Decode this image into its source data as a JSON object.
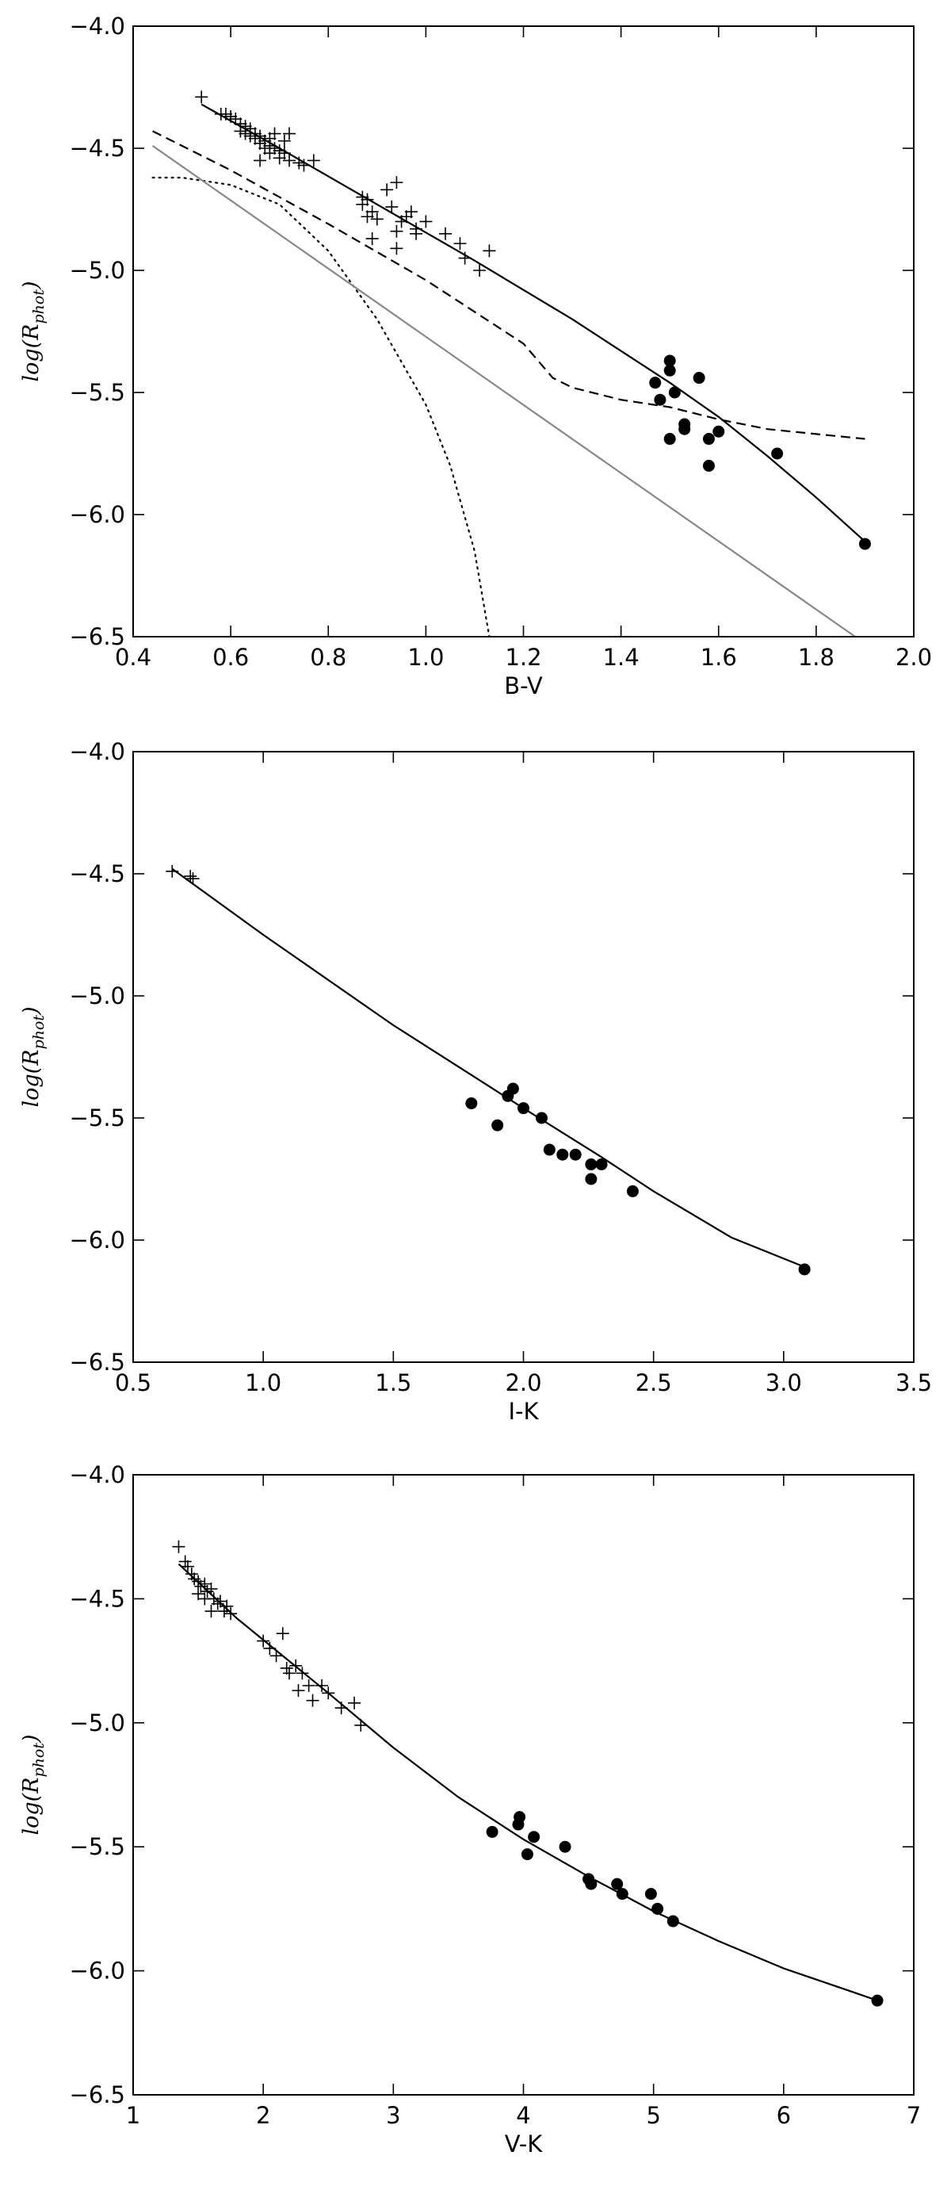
{
  "chart_data": [
    {
      "type": "scatter",
      "title": "",
      "xlabel": "B-V",
      "ylabel": "log(R_phot)",
      "xlim": [
        0.4,
        2.0
      ],
      "ylim": [
        -6.5,
        -4.0
      ],
      "xticks": [
        0.4,
        0.6,
        0.8,
        1.0,
        1.2,
        1.4,
        1.6,
        1.8,
        2.0
      ],
      "yticks": [
        -4.0,
        -4.5,
        -5.0,
        -5.5,
        -6.0,
        -6.5
      ],
      "grid": false,
      "legend": "none",
      "series": [
        {
          "marker": "plus",
          "color": "#000000",
          "points": [
            [
              0.54,
              -4.29
            ],
            [
              0.58,
              -4.36
            ],
            [
              0.59,
              -4.36
            ],
            [
              0.6,
              -4.37
            ],
            [
              0.61,
              -4.38
            ],
            [
              0.62,
              -4.4
            ],
            [
              0.62,
              -4.43
            ],
            [
              0.63,
              -4.41
            ],
            [
              0.63,
              -4.44
            ],
            [
              0.64,
              -4.42
            ],
            [
              0.64,
              -4.45
            ],
            [
              0.65,
              -4.46
            ],
            [
              0.65,
              -4.44
            ],
            [
              0.66,
              -4.48
            ],
            [
              0.66,
              -4.45
            ],
            [
              0.67,
              -4.47
            ],
            [
              0.67,
              -4.5
            ],
            [
              0.68,
              -4.52
            ],
            [
              0.68,
              -4.46
            ],
            [
              0.69,
              -4.5
            ],
            [
              0.69,
              -4.44
            ],
            [
              0.7,
              -4.51
            ],
            [
              0.7,
              -4.54
            ],
            [
              0.71,
              -4.47
            ],
            [
              0.71,
              -4.52
            ],
            [
              0.72,
              -4.55
            ],
            [
              0.72,
              -4.44
            ],
            [
              0.74,
              -4.56
            ],
            [
              0.75,
              -4.57
            ],
            [
              0.77,
              -4.55
            ],
            [
              0.66,
              -4.55
            ],
            [
              0.68,
              -4.49
            ],
            [
              0.87,
              -4.7
            ],
            [
              0.87,
              -4.73
            ],
            [
              0.88,
              -4.78
            ],
            [
              0.88,
              -4.71
            ],
            [
              0.89,
              -4.76
            ],
            [
              0.89,
              -4.87
            ],
            [
              0.9,
              -4.79
            ],
            [
              0.92,
              -4.67
            ],
            [
              0.93,
              -4.74
            ],
            [
              0.94,
              -4.64
            ],
            [
              0.94,
              -4.84
            ],
            [
              0.94,
              -4.91
            ],
            [
              0.95,
              -4.8
            ],
            [
              0.96,
              -4.78
            ],
            [
              0.97,
              -4.76
            ],
            [
              0.98,
              -4.85
            ],
            [
              0.98,
              -4.83
            ],
            [
              1.0,
              -4.8
            ],
            [
              1.04,
              -4.85
            ],
            [
              1.07,
              -4.89
            ],
            [
              1.08,
              -4.95
            ],
            [
              1.11,
              -5.0
            ],
            [
              1.13,
              -4.92
            ]
          ]
        },
        {
          "marker": "circle",
          "color": "#000000",
          "points": [
            [
              1.47,
              -5.46
            ],
            [
              1.48,
              -5.53
            ],
            [
              1.5,
              -5.37
            ],
            [
              1.5,
              -5.41
            ],
            [
              1.51,
              -5.5
            ],
            [
              1.5,
              -5.69
            ],
            [
              1.53,
              -5.63
            ],
            [
              1.53,
              -5.65
            ],
            [
              1.56,
              -5.44
            ],
            [
              1.58,
              -5.69
            ],
            [
              1.58,
              -5.8
            ],
            [
              1.6,
              -5.66
            ],
            [
              1.72,
              -5.75
            ],
            [
              1.9,
              -6.12
            ]
          ]
        }
      ],
      "lines": [
        {
          "style": "solid",
          "color": "#000000",
          "points": [
            [
              0.54,
              -4.32
            ],
            [
              0.7,
              -4.5
            ],
            [
              0.9,
              -4.73
            ],
            [
              1.1,
              -4.96
            ],
            [
              1.3,
              -5.2
            ],
            [
              1.5,
              -5.46
            ],
            [
              1.6,
              -5.6
            ],
            [
              1.7,
              -5.76
            ],
            [
              1.8,
              -5.93
            ],
            [
              1.9,
              -6.11
            ]
          ]
        },
        {
          "style": "dashed",
          "color": "#000000",
          "points": [
            [
              0.44,
              -4.43
            ],
            [
              0.6,
              -4.59
            ],
            [
              0.8,
              -4.81
            ],
            [
              1.0,
              -5.04
            ],
            [
              1.2,
              -5.3
            ],
            [
              1.26,
              -5.44
            ],
            [
              1.3,
              -5.48
            ],
            [
              1.4,
              -5.53
            ],
            [
              1.5,
              -5.56
            ],
            [
              1.6,
              -5.61
            ],
            [
              1.7,
              -5.65
            ],
            [
              1.8,
              -5.67
            ],
            [
              1.9,
              -5.69
            ]
          ]
        },
        {
          "style": "dotted",
          "color": "#000000",
          "points": [
            [
              0.44,
              -4.62
            ],
            [
              0.5,
              -4.62
            ],
            [
              0.6,
              -4.65
            ],
            [
              0.7,
              -4.73
            ],
            [
              0.8,
              -4.92
            ],
            [
              0.9,
              -5.2
            ],
            [
              1.0,
              -5.55
            ],
            [
              1.05,
              -5.8
            ],
            [
              1.1,
              -6.15
            ],
            [
              1.13,
              -6.5
            ]
          ]
        },
        {
          "style": "solid",
          "color": "#888888",
          "points": [
            [
              0.44,
              -4.49
            ],
            [
              1.88,
              -6.5
            ]
          ]
        }
      ]
    },
    {
      "type": "scatter",
      "title": "",
      "xlabel": "I-K",
      "ylabel": "log(R_phot)",
      "xlim": [
        0.5,
        3.5
      ],
      "ylim": [
        -6.5,
        -4.0
      ],
      "xticks": [
        0.5,
        1.0,
        1.5,
        2.0,
        2.5,
        3.0,
        3.5
      ],
      "yticks": [
        -4.0,
        -4.5,
        -5.0,
        -5.5,
        -6.0,
        -6.5
      ],
      "grid": false,
      "legend": "none",
      "series": [
        {
          "marker": "plus",
          "color": "#000000",
          "points": [
            [
              0.65,
              -4.49
            ],
            [
              0.72,
              -4.51
            ],
            [
              0.73,
              -4.52
            ]
          ]
        },
        {
          "marker": "circle",
          "color": "#000000",
          "points": [
            [
              1.8,
              -5.44
            ],
            [
              1.9,
              -5.53
            ],
            [
              1.94,
              -5.41
            ],
            [
              1.96,
              -5.38
            ],
            [
              2.0,
              -5.46
            ],
            [
              2.07,
              -5.5
            ],
            [
              2.1,
              -5.63
            ],
            [
              2.15,
              -5.65
            ],
            [
              2.2,
              -5.65
            ],
            [
              2.26,
              -5.69
            ],
            [
              2.3,
              -5.69
            ],
            [
              2.26,
              -5.75
            ],
            [
              2.42,
              -5.8
            ],
            [
              3.08,
              -6.12
            ]
          ]
        }
      ],
      "lines": [
        {
          "style": "solid",
          "color": "#000000",
          "points": [
            [
              0.65,
              -4.48
            ],
            [
              1.0,
              -4.75
            ],
            [
              1.5,
              -5.12
            ],
            [
              2.0,
              -5.46
            ],
            [
              2.3,
              -5.66
            ],
            [
              2.5,
              -5.8
            ],
            [
              2.8,
              -5.99
            ],
            [
              3.08,
              -6.11
            ]
          ]
        }
      ]
    },
    {
      "type": "scatter",
      "title": "",
      "xlabel": "V-K",
      "ylabel": "log(R_phot)",
      "xlim": [
        1,
        7
      ],
      "ylim": [
        -6.5,
        -4.0
      ],
      "xticks": [
        1,
        2,
        3,
        4,
        5,
        6,
        7
      ],
      "yticks": [
        -4.0,
        -4.5,
        -5.0,
        -5.5,
        -6.0,
        -6.5
      ],
      "grid": false,
      "legend": "none",
      "series": [
        {
          "marker": "plus",
          "color": "#000000",
          "points": [
            [
              1.35,
              -4.29
            ],
            [
              1.4,
              -4.35
            ],
            [
              1.42,
              -4.37
            ],
            [
              1.45,
              -4.4
            ],
            [
              1.47,
              -4.42
            ],
            [
              1.5,
              -4.43
            ],
            [
              1.5,
              -4.48
            ],
            [
              1.52,
              -4.45
            ],
            [
              1.55,
              -4.44
            ],
            [
              1.57,
              -4.47
            ],
            [
              1.6,
              -4.46
            ],
            [
              1.6,
              -4.55
            ],
            [
              1.62,
              -4.5
            ],
            [
              1.65,
              -4.52
            ],
            [
              1.67,
              -4.51
            ],
            [
              1.7,
              -4.55
            ],
            [
              1.72,
              -4.53
            ],
            [
              1.75,
              -4.56
            ],
            [
              1.55,
              -4.5
            ],
            [
              2.0,
              -4.67
            ],
            [
              2.05,
              -4.7
            ],
            [
              2.1,
              -4.73
            ],
            [
              2.15,
              -4.64
            ],
            [
              2.18,
              -4.78
            ],
            [
              2.2,
              -4.8
            ],
            [
              2.25,
              -4.77
            ],
            [
              2.27,
              -4.87
            ],
            [
              2.3,
              -4.8
            ],
            [
              2.35,
              -4.85
            ],
            [
              2.38,
              -4.91
            ],
            [
              2.45,
              -4.85
            ],
            [
              2.5,
              -4.88
            ],
            [
              2.6,
              -4.94
            ],
            [
              2.7,
              -4.92
            ],
            [
              2.75,
              -5.01
            ]
          ]
        },
        {
          "marker": "circle",
          "color": "#000000",
          "points": [
            [
              3.76,
              -5.44
            ],
            [
              3.96,
              -5.41
            ],
            [
              3.97,
              -5.38
            ],
            [
              4.03,
              -5.53
            ],
            [
              4.08,
              -5.46
            ],
            [
              4.32,
              -5.5
            ],
            [
              4.5,
              -5.63
            ],
            [
              4.52,
              -5.65
            ],
            [
              4.72,
              -5.65
            ],
            [
              4.76,
              -5.69
            ],
            [
              4.98,
              -5.69
            ],
            [
              5.03,
              -5.75
            ],
            [
              5.15,
              -5.8
            ],
            [
              6.72,
              -6.12
            ]
          ]
        }
      ],
      "lines": [
        {
          "style": "solid",
          "color": "#000000",
          "points": [
            [
              1.35,
              -4.36
            ],
            [
              1.8,
              -4.58
            ],
            [
              2.5,
              -4.88
            ],
            [
              3.0,
              -5.1
            ],
            [
              3.5,
              -5.3
            ],
            [
              4.0,
              -5.47
            ],
            [
              4.5,
              -5.62
            ],
            [
              5.0,
              -5.76
            ],
            [
              5.5,
              -5.88
            ],
            [
              6.0,
              -5.99
            ],
            [
              6.5,
              -6.08
            ],
            [
              6.72,
              -6.12
            ]
          ]
        }
      ]
    }
  ]
}
